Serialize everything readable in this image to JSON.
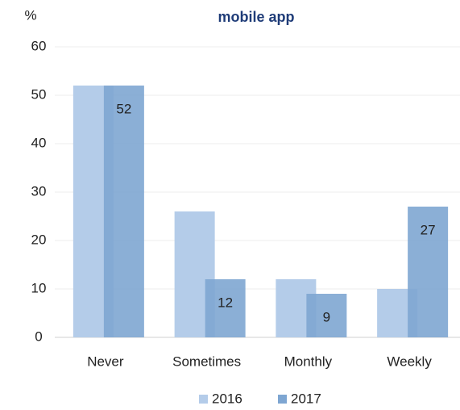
{
  "chart_data": {
    "type": "bar",
    "title": "mobile app",
    "y_label": "%",
    "categories": [
      "Never",
      "Sometimes",
      "Monthly",
      "Weekly"
    ],
    "series": [
      {
        "name": "2016",
        "color": "#b4cce9",
        "values": [
          52,
          26,
          12,
          10
        ],
        "data_labels": false
      },
      {
        "name": "2017",
        "color": "#7ea6d2",
        "values": [
          52,
          12,
          9,
          27
        ],
        "data_labels": true
      }
    ],
    "ylim": [
      0,
      60
    ],
    "yticks": [
      0,
      10,
      20,
      30,
      40,
      50,
      60
    ],
    "grid": true,
    "legend": "bottom"
  }
}
